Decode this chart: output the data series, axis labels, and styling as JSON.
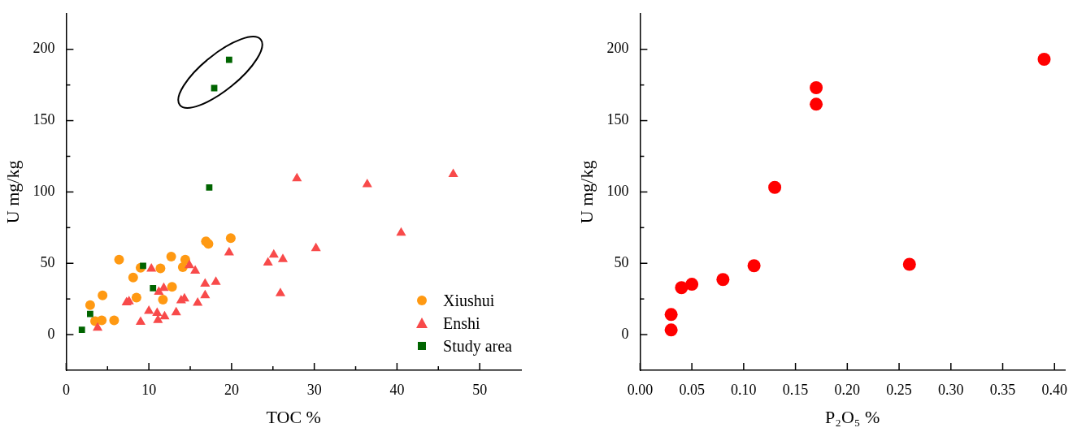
{
  "chart_data": [
    {
      "type": "scatter",
      "xlabel": "TOC %",
      "ylabel": "U mg/kg",
      "xlim": [
        0,
        55
      ],
      "ylim": [
        -25,
        225
      ],
      "xticks": [
        0,
        {
          "value": 5,
          "label": null
        },
        10,
        {
          "value": 15,
          "label": null
        },
        20,
        {
          "value": 25,
          "label": null
        },
        30,
        {
          "value": 35,
          "label": null
        },
        40,
        {
          "value": 45,
          "label": null
        },
        50
      ],
      "yticks": [
        0,
        {
          "value": 25,
          "label": null
        },
        50,
        {
          "value": 75,
          "label": null
        },
        100,
        {
          "value": 125,
          "label": null
        },
        150,
        {
          "value": 175,
          "label": null
        },
        200
      ],
      "legend": "bottom right",
      "series": [
        {
          "name": "Xiushui",
          "color": "#ff9912",
          "marker": "circle",
          "x": [
            6.4,
            9.0,
            8.1,
            4.4,
            2.9,
            3.5,
            4.3,
            5.8,
            8.5,
            11.4,
            12.7,
            12.8,
            11.7,
            14.4,
            14.1,
            17.2,
            16.9,
            19.9
          ],
          "values": [
            52.5,
            46.8,
            40,
            27.5,
            20.7,
            9.5,
            10,
            10,
            26,
            46.4,
            54.7,
            33.5,
            24.5,
            52.5,
            47.3,
            63.7,
            65.4,
            67.6
          ]
        },
        {
          "name": "Enshi",
          "color": "#f84a4a",
          "marker": "triangle",
          "x": [
            27.9,
            36.4,
            46.8,
            40.5,
            30.2,
            19.7,
            25.1,
            24.4,
            26.2,
            25.9,
            10.3,
            14.9,
            15.6,
            16.8,
            18.1,
            16.8,
            15.9,
            14.3,
            13.9,
            13.3,
            11.8,
            11.2,
            11.9,
            11.0,
            11.1,
            10.0,
            9.0,
            7.3,
            7.6,
            3.8
          ],
          "values": [
            109.5,
            105.4,
            112.5,
            71.3,
            60.5,
            57.5,
            56,
            50.4,
            52.9,
            28.9,
            46.2,
            48.6,
            44.7,
            35.6,
            36.9,
            27.5,
            22.3,
            25.3,
            24,
            15.6,
            32.6,
            30,
            12.7,
            15.1,
            10.1,
            16.6,
            8.9,
            22.5,
            23.3,
            4.8
          ]
        },
        {
          "name": "Study area",
          "color": "#006400",
          "marker": "square",
          "x": [
            1.9,
            2.9,
            9.3,
            10.5,
            17.3,
            17.9,
            19.7
          ],
          "values": [
            3.4,
            14.5,
            48.2,
            32.6,
            103.2,
            172.8,
            192.7
          ]
        }
      ]
    },
    {
      "type": "scatter",
      "xlabel": "P₂O₅ %",
      "ylabel": "U mg/kg",
      "xlim": [
        0,
        0.41
      ],
      "ylim": [
        -25,
        225
      ],
      "xticks": [
        {
          "value": 0,
          "label": "0.00"
        },
        {
          "value": 0.05,
          "label": "0.05"
        },
        {
          "value": 0.1,
          "label": "0.10"
        },
        {
          "value": 0.15,
          "label": "0.15"
        },
        {
          "value": 0.2,
          "label": "0.20"
        },
        {
          "value": 0.25,
          "label": "0.25"
        },
        {
          "value": 0.3,
          "label": "0.30"
        },
        {
          "value": 0.35,
          "label": "0.35"
        },
        {
          "value": 0.4,
          "label": "0.40"
        }
      ],
      "yticks": [
        0,
        {
          "value": 25,
          "label": null
        },
        50,
        {
          "value": 75,
          "label": null
        },
        100,
        {
          "value": 125,
          "label": null
        },
        150,
        {
          "value": 175,
          "label": null
        },
        200
      ],
      "series": [
        {
          "color": "#ff0000",
          "marker": "circle",
          "x": [
            0.03,
            0.03,
            0.04,
            0.05,
            0.08,
            0.11,
            0.13,
            0.17,
            0.17,
            0.26,
            0.39
          ],
          "values": [
            3.3,
            14.1,
            32.9,
            35.3,
            38.6,
            48.3,
            103.2,
            161.5,
            173.1,
            49.3,
            193
          ]
        }
      ]
    }
  ]
}
